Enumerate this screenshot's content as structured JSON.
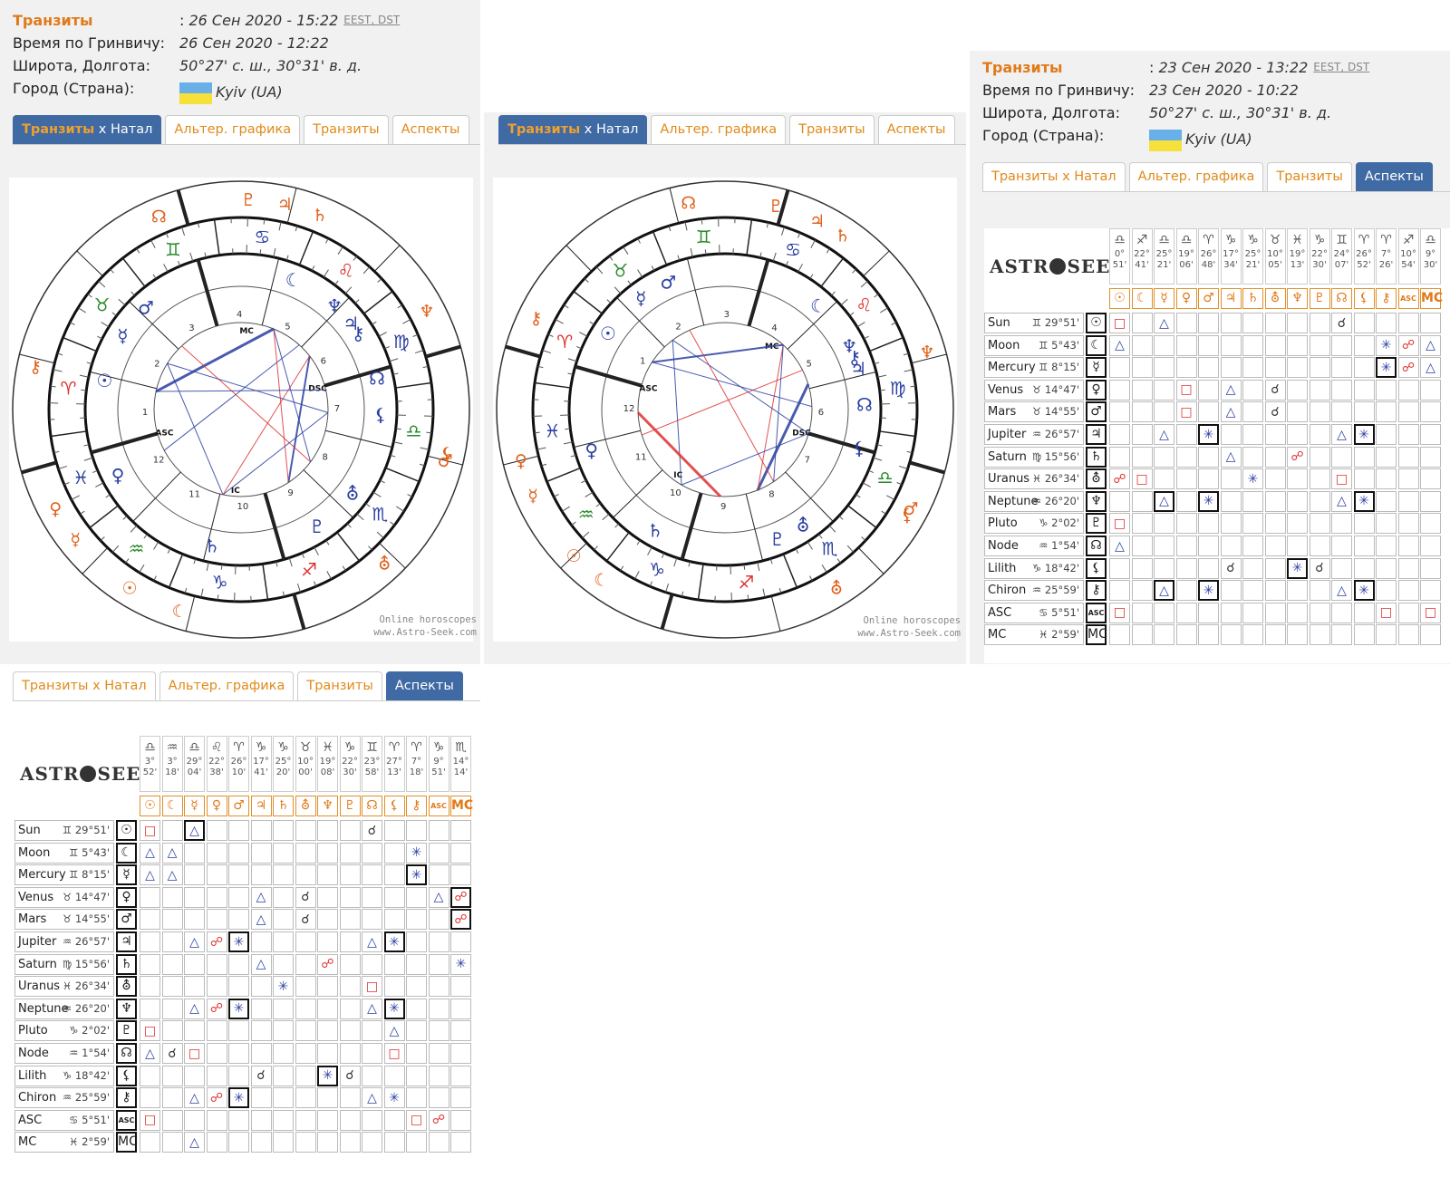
{
  "panel1": {
    "transit_label": "Транзиты",
    "transit_value": "26 Сен 2020 - 15:22",
    "tz1": "EEST",
    "tz2": "DST",
    "gmt_label": "Время по Гринвичу:",
    "gmt_value": "26 Сен 2020 - 12:22",
    "lat_label": "Широта, Долгота:",
    "lat_value": "50°27' с. ш., 30°31' в. д.",
    "city_label": "Город (Страна):",
    "city_value": "Kyiv (UA)"
  },
  "panel3": {
    "transit_label": "Транзиты",
    "transit_value": "23 Сен 2020 - 13:22",
    "tz1": "EEST",
    "tz2": "DST",
    "gmt_label": "Время по Гринвичу:",
    "gmt_value": "23 Сен 2020 - 10:22",
    "lat_label": "Широта, Долгота:",
    "lat_value": "50°27' с. ш., 30°31' в. д.",
    "city_label": "Город (Страна):",
    "city_value": "Kyiv (UA)"
  },
  "tabs": {
    "t1a": "Транзиты",
    "t1b": " x Натал",
    "t2": "Альтер. графика",
    "t3": "Транзиты",
    "t4": "Аспекты"
  },
  "wheel": {
    "credit1": "Online horoscopes",
    "credit2": "www.Astro-Seek.com",
    "asc": "ASC",
    "dsc": "DSC",
    "mc": "MC",
    "ic": "IC"
  },
  "logo": {
    "a": "ASTR",
    "b": "SEEK"
  },
  "grid_top": {
    "cols": [
      "♎ 0° 51'",
      "♐ 22° 41'",
      "♎ 25° 21'",
      "♎ 19° 06'",
      "♈ 26° 48'",
      "♑ 17° 34'",
      "♑ 25° 21'",
      "♉ 10° 05'",
      "♓ 19° 13'",
      "♑ 22° 30'",
      "♊ 24° 07'",
      "♈ 26° 52'",
      "♈ 7° 26'",
      "♐ 10° 54'",
      "♎ 9° 30'"
    ]
  },
  "grid_bottom": {
    "cols": [
      "♎ 3° 52'",
      "♒ 3° 18'",
      "♎ 29° 04'",
      "♌ 22° 38'",
      "♈ 26° 10'",
      "♑ 17° 41'",
      "♑ 25° 20'",
      "♉ 10° 00'",
      "♓ 19° 08'",
      "♑ 22° 30'",
      "♊ 23° 58'",
      "♈ 27° 13'",
      "♈ 7° 18'",
      "♑ 9° 51'",
      "♏ 14° 14'"
    ]
  },
  "col_symbols": [
    "☉",
    "☾",
    "☿",
    "♀",
    "♂",
    "♃",
    "♄",
    "⛢",
    "♆",
    "♇",
    "☊",
    "⚸",
    "⚷",
    "ASC",
    "MC"
  ],
  "rows": [
    {
      "name": "Sun",
      "sign": "♊",
      "deg": "29°51'",
      "sym": "☉"
    },
    {
      "name": "Moon",
      "sign": "♊",
      "deg": "5°43'",
      "sym": "☾"
    },
    {
      "name": "Mercury",
      "sign": "♊",
      "deg": "8°15'",
      "sym": "☿"
    },
    {
      "name": "Venus",
      "sign": "♉",
      "deg": "14°47'",
      "sym": "♀"
    },
    {
      "name": "Mars",
      "sign": "♉",
      "deg": "14°55'",
      "sym": "♂"
    },
    {
      "name": "Jupiter",
      "sign": "♒",
      "deg": "26°57'",
      "sym": "♃"
    },
    {
      "name": "Saturn",
      "sign": "♍",
      "deg": "15°56'",
      "sym": "♄"
    },
    {
      "name": "Uranus",
      "sign": "♓",
      "deg": "26°34'",
      "sym": "⛢"
    },
    {
      "name": "Neptune",
      "sign": "♒",
      "deg": "26°20'",
      "sym": "♆"
    },
    {
      "name": "Pluto",
      "sign": "♑",
      "deg": "2°02'",
      "sym": "♇"
    },
    {
      "name": "Node",
      "sign": "♒",
      "deg": "1°54'",
      "sym": "☊"
    },
    {
      "name": "Lilith",
      "sign": "♑",
      "deg": "18°42'",
      "sym": "⚸"
    },
    {
      "name": "Chiron",
      "sign": "♒",
      "deg": "25°59'",
      "sym": "⚷"
    },
    {
      "name": "ASC",
      "sign": "♋",
      "deg": "5°51'",
      "sym": "ASC"
    },
    {
      "name": "MC",
      "sign": "♓",
      "deg": "2°59'",
      "sym": "MC"
    }
  ],
  "aspects_top": [
    [
      "sq",
      0,
      0
    ],
    [
      "tri",
      0,
      2
    ],
    [
      "cj",
      0,
      10
    ],
    [
      "tri",
      1,
      0
    ],
    [
      "sx",
      1,
      12
    ],
    [
      "op",
      1,
      13
    ],
    [
      "tri",
      1,
      14
    ],
    [
      "sxb",
      2,
      12
    ],
    [
      "op",
      2,
      13
    ],
    [
      "tri",
      2,
      14
    ],
    [
      "sq",
      3,
      3
    ],
    [
      "tri",
      3,
      5
    ],
    [
      "cj",
      3,
      7
    ],
    [
      "sq",
      4,
      3
    ],
    [
      "tri",
      4,
      5
    ],
    [
      "cj",
      4,
      7
    ],
    [
      "tri",
      5,
      2
    ],
    [
      "sxb",
      5,
      4
    ],
    [
      "tri",
      5,
      10
    ],
    [
      "sxb",
      5,
      11
    ],
    [
      "tri",
      6,
      5
    ],
    [
      "op",
      6,
      8
    ],
    [
      "op",
      7,
      0
    ],
    [
      "sq",
      7,
      1
    ],
    [
      "sx",
      7,
      6
    ],
    [
      "sq",
      7,
      10
    ],
    [
      "trib",
      8,
      2
    ],
    [
      "sxb",
      8,
      4
    ],
    [
      "tri",
      8,
      10
    ],
    [
      "sxb",
      8,
      11
    ],
    [
      "sq",
      9,
      0
    ],
    [
      "tri",
      10,
      0
    ],
    [
      "cj",
      11,
      5
    ],
    [
      "sxb",
      11,
      8
    ],
    [
      "cj",
      11,
      9
    ],
    [
      "trib",
      12,
      2
    ],
    [
      "sxb",
      12,
      4
    ],
    [
      "tri",
      12,
      10
    ],
    [
      "sxb",
      12,
      11
    ],
    [
      "sq",
      13,
      0
    ],
    [
      "sq",
      13,
      12
    ],
    [
      "sq",
      13,
      14
    ]
  ],
  "aspects_bottom": [
    [
      "sq",
      0,
      0
    ],
    [
      "trib",
      0,
      2
    ],
    [
      "cj",
      0,
      10
    ],
    [
      "tri",
      1,
      0
    ],
    [
      "tri",
      1,
      1
    ],
    [
      "sx",
      1,
      12
    ],
    [
      "tri",
      2,
      0
    ],
    [
      "tri",
      2,
      1
    ],
    [
      "sxb",
      2,
      12
    ],
    [
      "tri",
      3,
      5
    ],
    [
      "cj",
      3,
      7
    ],
    [
      "tri",
      3,
      13
    ],
    [
      "opb",
      3,
      14
    ],
    [
      "tri",
      4,
      5
    ],
    [
      "cj",
      4,
      7
    ],
    [
      "opb",
      4,
      14
    ],
    [
      "tri",
      5,
      2
    ],
    [
      "op",
      5,
      3
    ],
    [
      "sxb",
      5,
      4
    ],
    [
      "tri",
      5,
      10
    ],
    [
      "sxb",
      5,
      11
    ],
    [
      "tri",
      6,
      5
    ],
    [
      "op",
      6,
      8
    ],
    [
      "sx",
      6,
      14
    ],
    [
      "sx",
      7,
      6
    ],
    [
      "sq",
      7,
      10
    ],
    [
      "tri",
      8,
      2
    ],
    [
      "op",
      8,
      3
    ],
    [
      "sxb",
      8,
      4
    ],
    [
      "tri",
      8,
      10
    ],
    [
      "sxb",
      8,
      11
    ],
    [
      "sq",
      9,
      0
    ],
    [
      "tri",
      9,
      11
    ],
    [
      "tri",
      10,
      0
    ],
    [
      "cj",
      10,
      1
    ],
    [
      "sq",
      10,
      2
    ],
    [
      "sq",
      10,
      11
    ],
    [
      "cj",
      11,
      5
    ],
    [
      "sxb",
      11,
      8
    ],
    [
      "cj",
      11,
      9
    ],
    [
      "tri",
      12,
      2
    ],
    [
      "op",
      12,
      3
    ],
    [
      "sxb",
      12,
      4
    ],
    [
      "tri",
      12,
      10
    ],
    [
      "sx",
      12,
      11
    ],
    [
      "sq",
      13,
      0
    ],
    [
      "sq",
      13,
      12
    ],
    [
      "op",
      13,
      13
    ],
    [
      "tri",
      14,
      2
    ]
  ]
}
